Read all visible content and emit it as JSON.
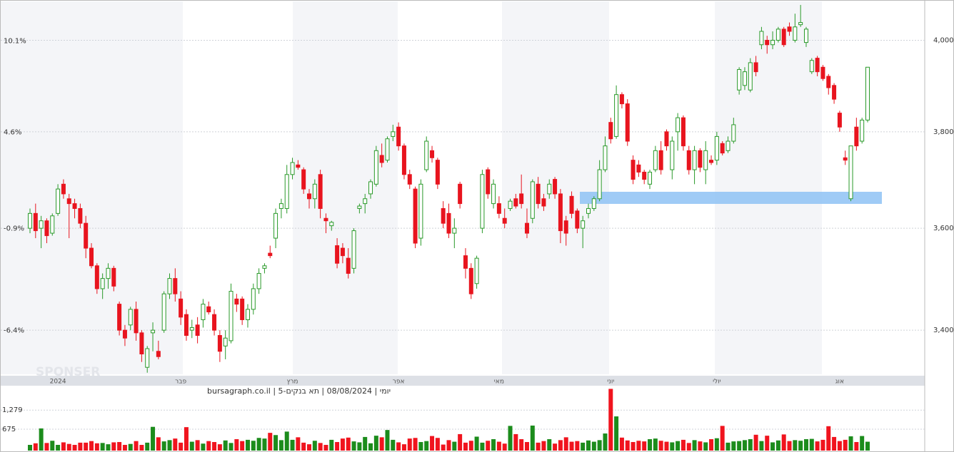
{
  "chart_data": {
    "type": "candlestick",
    "title": "יומי | 08/08/2024 | תא בנקים-5 | bursagraph.co.il",
    "watermark": "SPONSER",
    "categories": [
      null,
      null,
      null,
      null,
      null,
      "2024",
      null,
      null,
      null,
      null,
      null,
      null,
      null,
      null,
      null,
      null,
      null,
      null,
      null,
      null,
      null,
      null,
      null,
      null,
      null,
      null,
      null,
      "פבר",
      null,
      null,
      null,
      null,
      null,
      null,
      null,
      null,
      null,
      null,
      null,
      null,
      null,
      null,
      null,
      null,
      null,
      null,
      null,
      "מרץ",
      null,
      null,
      null,
      null,
      null,
      null,
      null,
      null,
      null,
      null,
      null,
      null,
      null,
      null,
      null,
      null,
      null,
      null,
      "אפר",
      null,
      null,
      null,
      null,
      null,
      null,
      null,
      null,
      null,
      null,
      null,
      null,
      null,
      null,
      null,
      null,
      null,
      "מאי",
      null,
      null,
      null,
      null,
      null,
      null,
      null,
      null,
      null,
      null,
      null,
      null,
      null,
      null,
      null,
      null,
      null,
      null,
      null,
      "יוני",
      null,
      null,
      null,
      null,
      null,
      null,
      null,
      null,
      null,
      null,
      null,
      null,
      null,
      null,
      null,
      null,
      null,
      null,
      "יולי",
      null,
      null,
      null,
      null,
      null,
      null,
      null,
      null,
      null,
      null,
      null,
      null,
      null,
      null,
      null,
      null,
      null,
      null,
      null,
      null,
      null,
      "אוג",
      null,
      null,
      null,
      null,
      null
    ],
    "open": [
      3600,
      3630,
      3600,
      3615,
      3590,
      3630,
      3690,
      3660,
      3650,
      3640,
      3610,
      3560,
      3525,
      3480,
      3500,
      3520,
      3450,
      3400,
      3410,
      3440,
      3395,
      3330,
      3395,
      3360,
      3400,
      3470,
      3500,
      3460,
      3430,
      3400,
      3410,
      3420,
      3445,
      3430,
      3390,
      3370,
      3380,
      3460,
      3460,
      3420,
      3440,
      3480,
      3520,
      3550,
      3580,
      3640,
      3640,
      3710,
      3730,
      3720,
      3670,
      3660,
      3710,
      3620,
      3605,
      3565,
      3560,
      3540,
      3520,
      3640,
      3650,
      3670,
      3690,
      3750,
      3740,
      3790,
      3810,
      3770,
      3710,
      3680,
      3580,
      3720,
      3760,
      3740,
      3640,
      3630,
      3590,
      3690,
      3545,
      3520,
      3490,
      3600,
      3720,
      3650,
      3650,
      3620,
      3640,
      3660,
      3670,
      3610,
      3620,
      3690,
      3660,
      3670,
      3700,
      3670,
      3615,
      3665,
      3635,
      3600,
      3630,
      3640,
      3660,
      3720,
      3820,
      3790,
      3880,
      3860,
      3740,
      3730,
      3715,
      3690,
      3720,
      3760,
      3800,
      3720,
      3800,
      3830,
      3760,
      3720,
      3760,
      3720,
      3740,
      3740,
      3775,
      3760,
      3780,
      3890,
      3900,
      3890,
      3950,
      3990,
      4000,
      3990,
      4000,
      4025,
      4030,
      4000,
      4035,
      3995,
      3930,
      3960,
      3940,
      3920,
      3900,
      3840,
      3745,
      3660,
      3810,
      3780,
      3825
    ],
    "high": [
      3640,
      3650,
      3625,
      3620,
      3630,
      3690,
      3700,
      3670,
      3660,
      3650,
      3625,
      3570,
      3530,
      3510,
      3530,
      3525,
      3455,
      3410,
      3445,
      3455,
      3400,
      3370,
      3415,
      3380,
      3475,
      3510,
      3520,
      3475,
      3440,
      3420,
      3425,
      3460,
      3455,
      3440,
      3400,
      3400,
      3490,
      3470,
      3465,
      3450,
      3490,
      3520,
      3530,
      3565,
      3640,
      3660,
      3730,
      3745,
      3740,
      3725,
      3680,
      3700,
      3720,
      3630,
      3615,
      3580,
      3570,
      3560,
      3600,
      3650,
      3670,
      3700,
      3770,
      3775,
      3790,
      3815,
      3820,
      3775,
      3720,
      3685,
      3700,
      3790,
      3770,
      3745,
      3655,
      3650,
      3620,
      3695,
      3560,
      3530,
      3545,
      3720,
      3725,
      3700,
      3665,
      3640,
      3660,
      3670,
      3710,
      3640,
      3700,
      3705,
      3670,
      3700,
      3705,
      3680,
      3625,
      3675,
      3640,
      3625,
      3650,
      3665,
      3740,
      3790,
      3830,
      3900,
      3885,
      3870,
      3750,
      3740,
      3720,
      3720,
      3770,
      3780,
      3805,
      3790,
      3840,
      3835,
      3770,
      3770,
      3765,
      3780,
      3750,
      3800,
      3780,
      3790,
      3830,
      3940,
      3940,
      3960,
      3965,
      4030,
      4010,
      4020,
      4030,
      4030,
      4040,
      4060,
      4080,
      4030,
      3960,
      3965,
      3945,
      3925,
      3905,
      3845,
      3760,
      3770,
      3830,
      3830,
      3940
    ],
    "low": [
      3590,
      3580,
      3560,
      3570,
      3585,
      3625,
      3660,
      3580,
      3620,
      3600,
      3540,
      3520,
      3470,
      3460,
      3480,
      3475,
      3390,
      3370,
      3400,
      3380,
      3340,
      3320,
      3360,
      3345,
      3395,
      3460,
      3455,
      3410,
      3380,
      3385,
      3375,
      3405,
      3430,
      3390,
      3340,
      3345,
      3375,
      3435,
      3410,
      3405,
      3430,
      3470,
      3510,
      3540,
      3560,
      3620,
      3630,
      3700,
      3720,
      3670,
      3640,
      3640,
      3620,
      3590,
      3595,
      3520,
      3530,
      3500,
      3510,
      3630,
      3630,
      3660,
      3685,
      3725,
      3735,
      3780,
      3760,
      3700,
      3680,
      3560,
      3565,
      3715,
      3735,
      3680,
      3600,
      3580,
      3560,
      3640,
      3500,
      3460,
      3480,
      3590,
      3660,
      3640,
      3620,
      3600,
      3635,
      3640,
      3640,
      3580,
      3610,
      3640,
      3635,
      3660,
      3660,
      3570,
      3565,
      3620,
      3590,
      3560,
      3620,
      3635,
      3655,
      3715,
      3775,
      3785,
      3850,
      3770,
      3690,
      3705,
      3690,
      3680,
      3715,
      3710,
      3760,
      3700,
      3760,
      3760,
      3710,
      3690,
      3715,
      3690,
      3730,
      3730,
      3750,
      3755,
      3775,
      3880,
      3890,
      3885,
      3920,
      3980,
      3970,
      3980,
      3995,
      3985,
      4010,
      3995,
      4030,
      3985,
      3925,
      3920,
      3910,
      3880,
      3860,
      3800,
      3730,
      3655,
      3760,
      3775,
      3820
    ],
    "close": [
      3630,
      3595,
      3615,
      3585,
      3625,
      3680,
      3670,
      3650,
      3640,
      3610,
      3560,
      3525,
      3480,
      3500,
      3520,
      3485,
      3400,
      3385,
      3440,
      3395,
      3355,
      3365,
      3400,
      3350,
      3470,
      3500,
      3470,
      3425,
      3390,
      3405,
      3390,
      3450,
      3435,
      3400,
      3360,
      3385,
      3475,
      3450,
      3420,
      3440,
      3480,
      3510,
      3525,
      3545,
      3630,
      3650,
      3710,
      3735,
      3725,
      3680,
      3660,
      3690,
      3640,
      3615,
      3612,
      3530,
      3545,
      3510,
      3595,
      3645,
      3660,
      3695,
      3760,
      3735,
      3785,
      3800,
      3770,
      3710,
      3690,
      3570,
      3690,
      3780,
      3745,
      3690,
      3610,
      3590,
      3600,
      3650,
      3520,
      3470,
      3540,
      3710,
      3670,
      3690,
      3630,
      3610,
      3655,
      3645,
      3650,
      3590,
      3695,
      3650,
      3645,
      3690,
      3670,
      3595,
      3590,
      3630,
      3600,
      3615,
      3640,
      3660,
      3720,
      3770,
      3785,
      3880,
      3860,
      3780,
      3700,
      3715,
      3700,
      3715,
      3760,
      3720,
      3770,
      3780,
      3830,
      3770,
      3720,
      3760,
      3725,
      3760,
      3735,
      3790,
      3755,
      3780,
      3815,
      3935,
      3930,
      3950,
      3930,
      4020,
      3990,
      4000,
      4025,
      3990,
      4020,
      4030,
      4040,
      4025,
      3955,
      3930,
      3915,
      3895,
      3870,
      3810,
      3740,
      3770,
      3770,
      3825,
      3940
    ],
    "up_color": "#2a9a2a",
    "down_color": "#e8141e",
    "log_scale": true,
    "grid": true,
    "ylim": [
      3317,
      4088
    ],
    "yticks": [
      {
        "value": 3400,
        "label": "3,400"
      },
      {
        "value": 3600,
        "label": "3,600"
      },
      {
        "value": 3800,
        "label": "3,800"
      },
      {
        "value": 4000,
        "label": "4,000"
      }
    ],
    "y2lim": [
      -8.67,
      12.56
    ],
    "y2ticks": [
      {
        "value": -6.4,
        "label": "-6.4%"
      },
      {
        "value": -0.9,
        "label": "-0.9%"
      },
      {
        "value": 4.6,
        "label": "4.6%"
      },
      {
        "value": 10.1,
        "label": "10.1%"
      }
    ],
    "volume": {
      "values": [
        180,
        230,
        700,
        240,
        310,
        180,
        260,
        210,
        180,
        250,
        250,
        300,
        230,
        240,
        200,
        260,
        270,
        180,
        210,
        300,
        180,
        250,
        750,
        420,
        290,
        330,
        380,
        250,
        740,
        280,
        330,
        220,
        300,
        270,
        200,
        320,
        240,
        360,
        300,
        340,
        310,
        400,
        380,
        560,
        490,
        330,
        600,
        340,
        420,
        250,
        200,
        310,
        240,
        180,
        340,
        270,
        380,
        410,
        290,
        260,
        430,
        230,
        470,
        420,
        650,
        340,
        260,
        200,
        380,
        400,
        270,
        300,
        460,
        400,
        190,
        330,
        280,
        520,
        250,
        310,
        440,
        250,
        310,
        360,
        280,
        220,
        780,
        520,
        360,
        270,
        790,
        250,
        300,
        360,
        220,
        330,
        420,
        280,
        300,
        250,
        320,
        280,
        330,
        540,
        1950,
        1080,
        410,
        320,
        270,
        310,
        290,
        360,
        380,
        310,
        280,
        260,
        300,
        340,
        240,
        330,
        290,
        260,
        360,
        390,
        780,
        250,
        290,
        300,
        330,
        360,
        500,
        300,
        470,
        260,
        320,
        510,
        300,
        330,
        310,
        360,
        370,
        290,
        340,
        770,
        430,
        300,
        340,
        450,
        270,
        460,
        280
      ],
      "ylim": [
        0,
        2050
      ],
      "yticks": [
        {
          "value": 675,
          "label": "675"
        },
        {
          "value": 1279,
          "label": "1,279"
        }
      ]
    }
  }
}
